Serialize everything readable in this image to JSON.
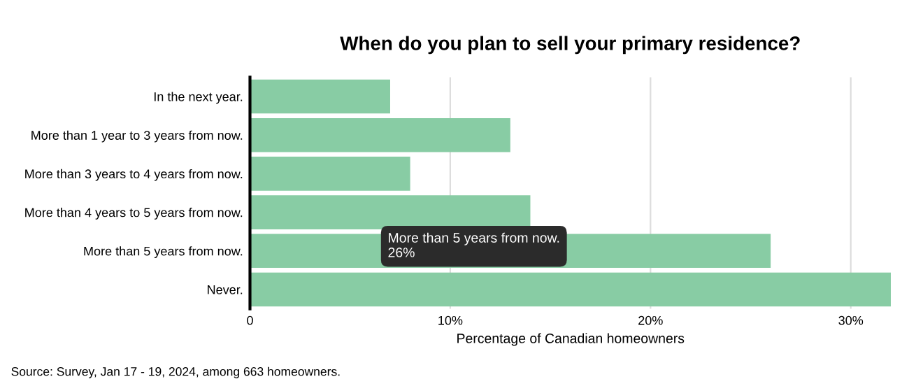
{
  "chart_data": {
    "type": "bar",
    "orientation": "horizontal",
    "title": "When do you plan to sell your primary residence?",
    "xlabel": "Percentage of Canadian homeowners",
    "categories": [
      "In the next year.",
      "More than 1 year to 3 years from now.",
      "More than 3 years to 4 years from now.",
      "More than 4 years to 5 years from now.",
      "More than 5 years from now.",
      "Never."
    ],
    "values": [
      7,
      13,
      8,
      14,
      26,
      32
    ],
    "color": "#88cca4",
    "xlim": [
      0,
      32
    ],
    "xticks": [
      0,
      {
        "value": 10,
        "label": "10%"
      },
      {
        "value": 20,
        "label": "20%"
      },
      {
        "value": 30,
        "label": "30%"
      }
    ],
    "grid": "x",
    "annotations": [
      "More than 5 years from now.\n26%",
      "Source: Survey, Jan 17 - 19, 2024, among 663 homeowners."
    ]
  }
}
